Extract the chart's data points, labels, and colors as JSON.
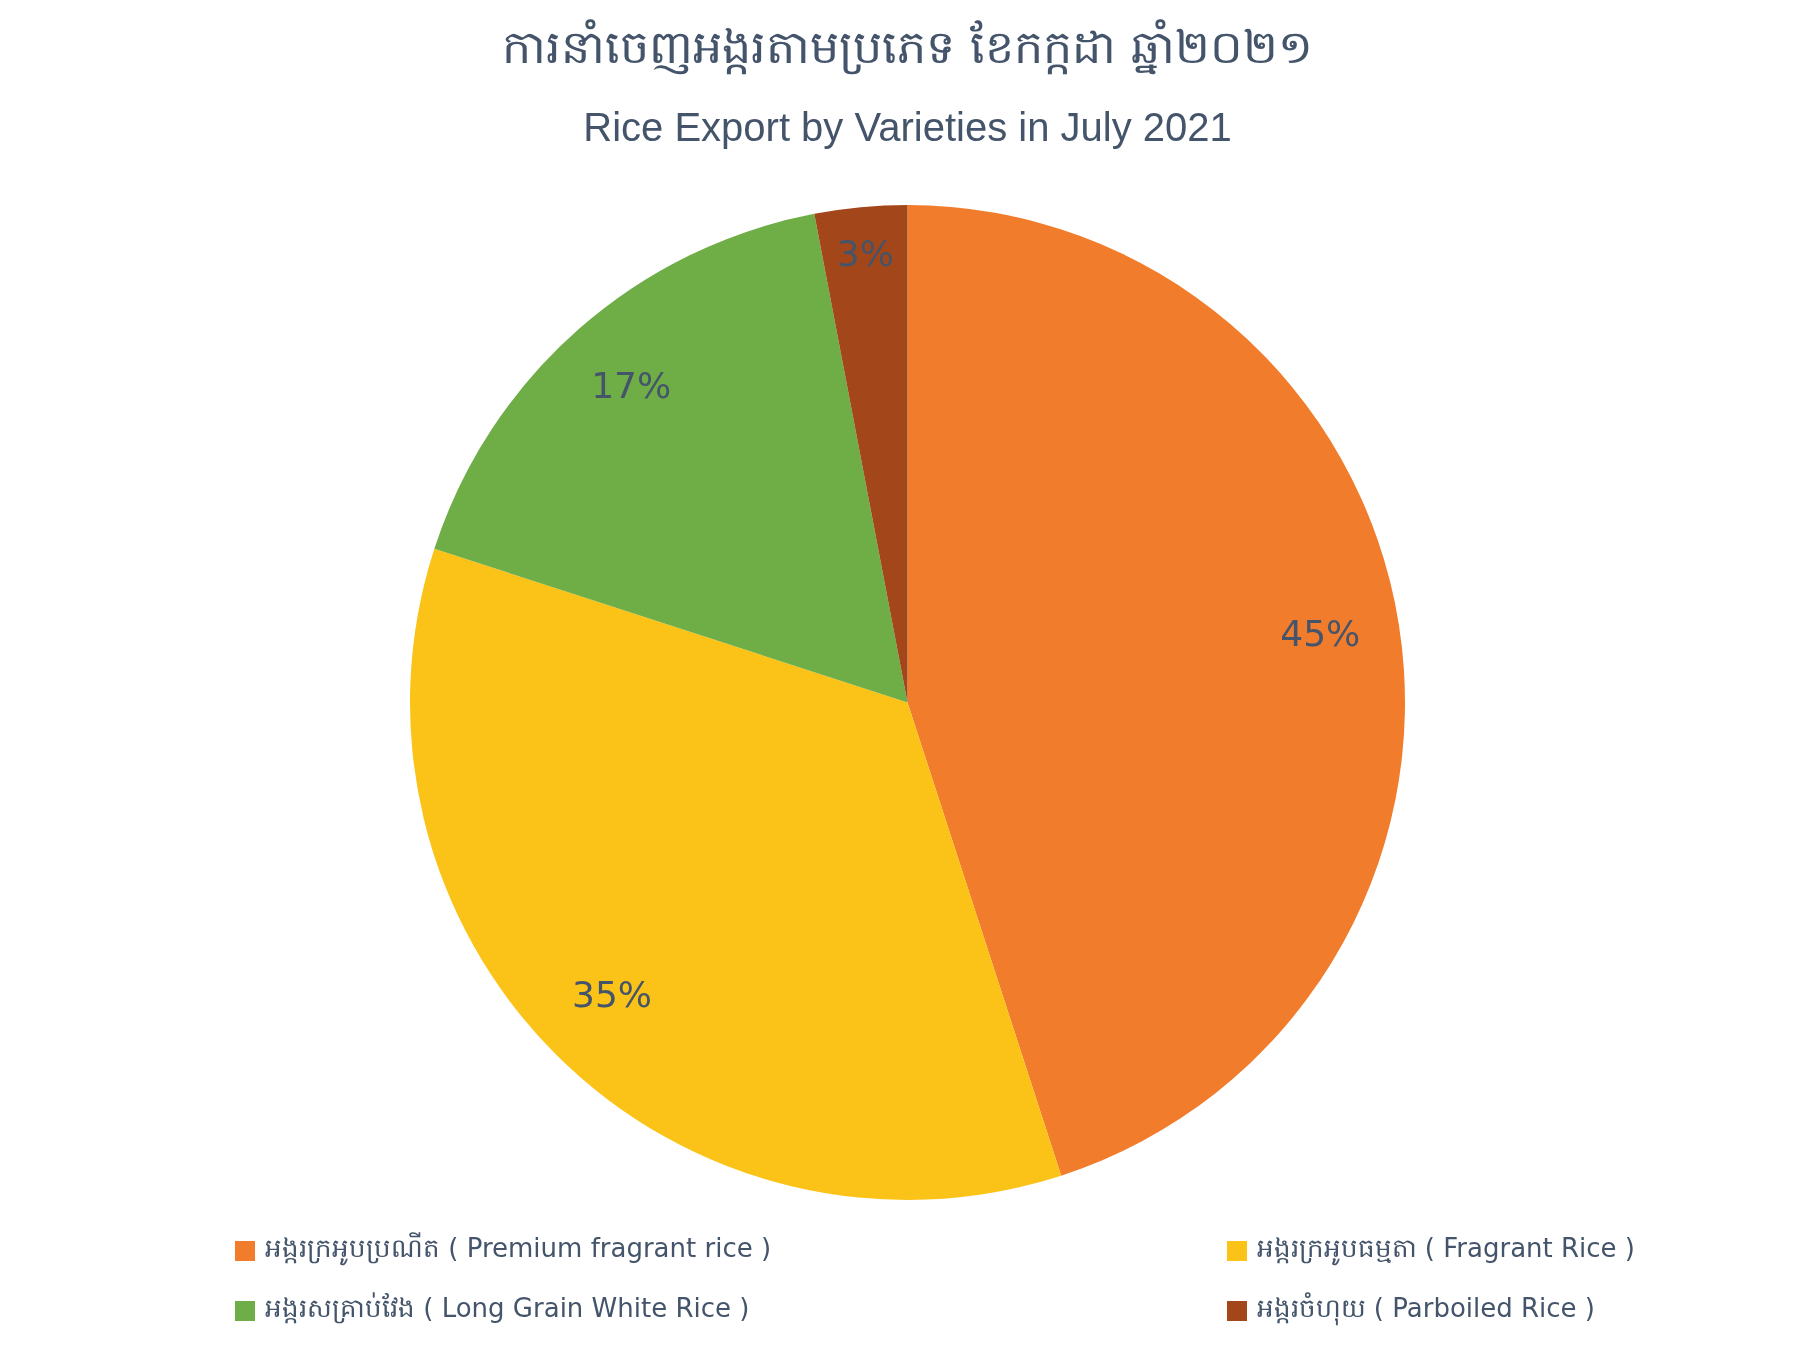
{
  "chart_data": {
    "type": "pie",
    "title": "ការនាំចេញអង្ករតាមប្រភេទ ខែកក្កដា ឆ្នាំ២០២១",
    "subtitle": "Rice Export by Varieties in July 2021",
    "categories": [
      "អង្ករក្រអូបប្រណីត ( Premium fragrant rice )",
      "អង្ករក្រអូបធម្មតា ( Fragrant Rice )",
      "អង្ករសគ្រាប់វែង ( Long Grain White Rice )",
      "អង្ករចំហុយ ( Parboiled Rice )"
    ],
    "values": [
      45,
      35,
      17,
      3
    ],
    "value_labels": [
      "45%",
      "35%",
      "17%",
      "3%"
    ],
    "colors": [
      "#f07c2c",
      "#fbc317",
      "#6fad46",
      "#a3471b"
    ],
    "legend": "bottom"
  }
}
